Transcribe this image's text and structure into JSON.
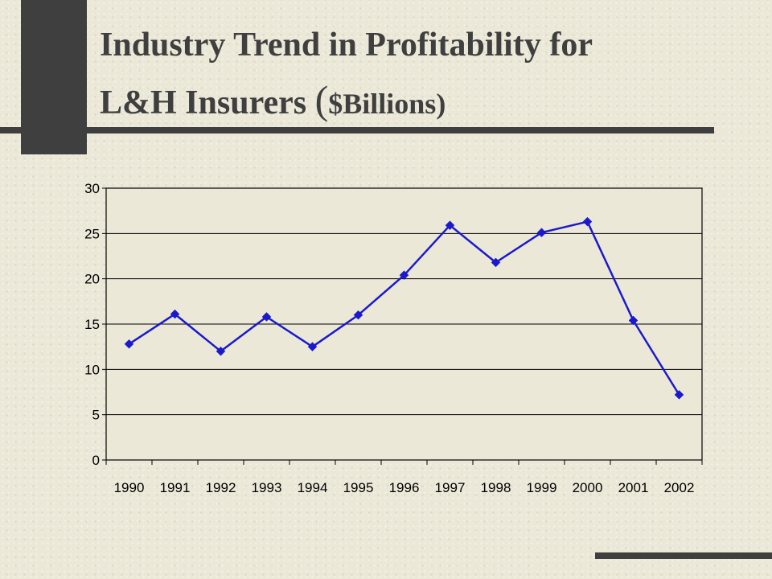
{
  "title": {
    "line1": "Industry Trend in Profitability for",
    "line2_main": "L&H Insurers ",
    "line2_paren_open": "(",
    "line2_unit": "$Billions",
    "line2_paren_close": ")"
  },
  "chart_data": {
    "type": "line",
    "title": "Industry Trend in Profitability for L&H Insurers ($Billions)",
    "xlabel": "",
    "ylabel": "",
    "categories": [
      "1990",
      "1991",
      "1992",
      "1993",
      "1994",
      "1995",
      "1996",
      "1997",
      "1998",
      "1999",
      "2000",
      "2001",
      "2002"
    ],
    "series": [
      {
        "values": [
          12.8,
          16.1,
          12.0,
          15.8,
          12.5,
          16.0,
          20.4,
          25.9,
          21.8,
          25.1,
          26.3,
          15.4,
          7.2
        ]
      }
    ],
    "ylim": [
      0,
      30
    ],
    "yticks": [
      "0",
      "5",
      "10",
      "15",
      "20",
      "25",
      "30"
    ],
    "grid": "horizontal",
    "legend": "none",
    "line_color": "#1a1acc",
    "marker": "diamond"
  }
}
